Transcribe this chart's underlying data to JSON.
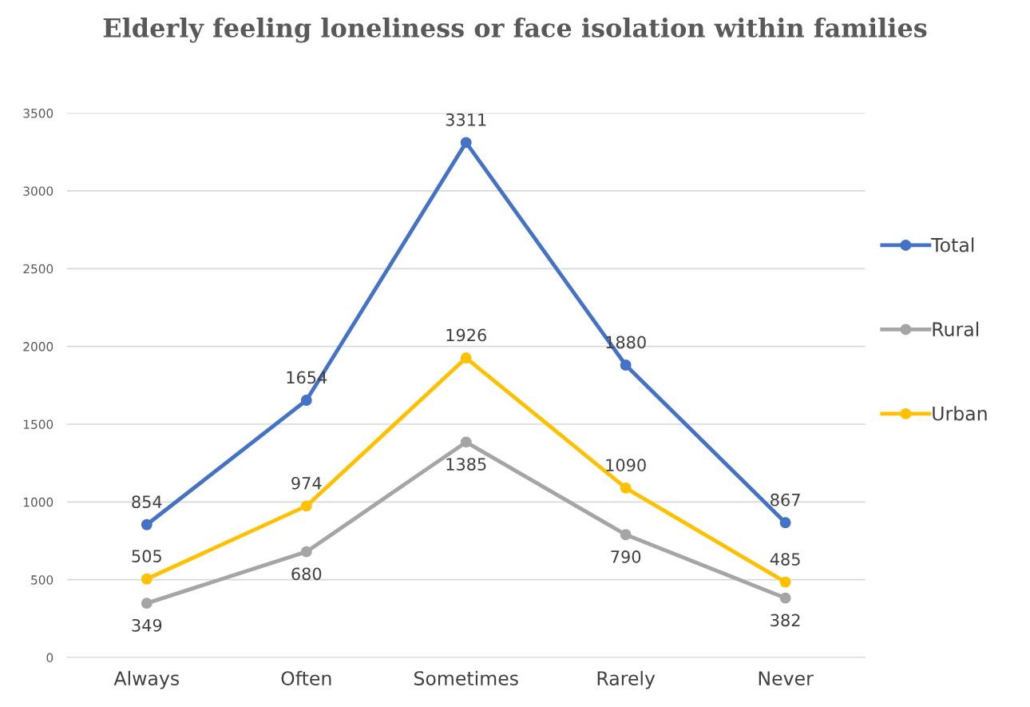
{
  "chart_data": {
    "type": "line",
    "title": "Elderly feeling loneliness or face isolation within families",
    "categories": [
      "Always",
      "Often",
      "Sometimes",
      "Rarely",
      "Never"
    ],
    "series": [
      {
        "name": "Total",
        "color": "#4472c4",
        "values": [
          854,
          1654,
          3311,
          1880,
          867
        ]
      },
      {
        "name": "Rural",
        "color": "#a5a5a5",
        "values": [
          349,
          680,
          1385,
          790,
          382
        ]
      },
      {
        "name": "Urban",
        "color": "#ffc000",
        "values": [
          505,
          974,
          1926,
          1090,
          485
        ]
      }
    ],
    "ylim": [
      0,
      3500
    ],
    "yticks": [
      0,
      500,
      1000,
      1500,
      2000,
      2500,
      3000,
      3500
    ],
    "grid": "y",
    "legend": "right",
    "marker": "circle",
    "line_style": "solid",
    "data_labels": true
  }
}
